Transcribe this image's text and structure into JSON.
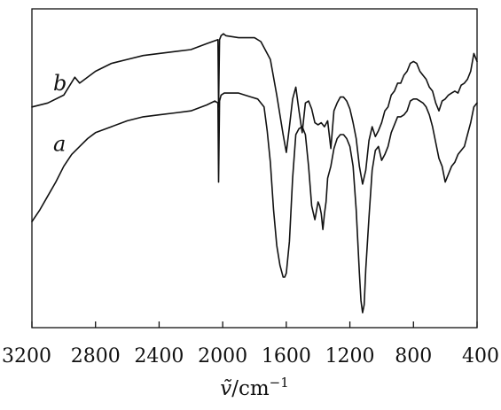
{
  "chart_data": {
    "type": "line",
    "title": "",
    "xlabel_var": "ṽ",
    "xlabel_unit": "/cm",
    "xlabel_exp": "−1",
    "x_reversed": true,
    "xlim": [
      3200,
      400
    ],
    "x_ticks": [
      3200,
      2800,
      2400,
      2000,
      1600,
      1200,
      800,
      400
    ],
    "y_ticks_shown": false,
    "grid": false,
    "legend": "none",
    "series": [
      {
        "name": "b",
        "color": "#111111",
        "x": [
          3200,
          3100,
          3000,
          2930,
          2900,
          2800,
          2700,
          2600,
          2500,
          2400,
          2300,
          2200,
          2100,
          2030,
          2026,
          2020,
          2010,
          1995,
          1980,
          1900,
          1850,
          1800,
          1760,
          1700,
          1660,
          1620,
          1600,
          1580,
          1560,
          1540,
          1520,
          1500,
          1480,
          1460,
          1440,
          1420,
          1400,
          1380,
          1360,
          1340,
          1320,
          1300,
          1280,
          1260,
          1240,
          1220,
          1200,
          1180,
          1160,
          1140,
          1120,
          1100,
          1080,
          1060,
          1040,
          1020,
          1000,
          980,
          960,
          940,
          920,
          900,
          880,
          860,
          840,
          820,
          800,
          780,
          760,
          740,
          720,
          700,
          680,
          660,
          640,
          620,
          600,
          580,
          560,
          540,
          520,
          500,
          480,
          460,
          440,
          420,
          400
        ],
        "y": [
          0.2,
          0.3,
          0.5,
          0.95,
          0.8,
          1.1,
          1.3,
          1.4,
          1.5,
          1.55,
          1.6,
          1.65,
          1.8,
          1.9,
          0.2,
          1.9,
          2.0,
          2.05,
          2.0,
          1.95,
          1.95,
          1.95,
          1.85,
          1.4,
          0.5,
          -0.5,
          -0.95,
          -0.3,
          0.4,
          0.7,
          0.1,
          -0.45,
          0.3,
          0.35,
          0.15,
          -0.2,
          -0.25,
          -0.2,
          -0.3,
          -0.15,
          -0.85,
          0.1,
          0.3,
          0.45,
          0.45,
          0.35,
          0.15,
          -0.2,
          -0.6,
          -1.3,
          -1.75,
          -1.4,
          -0.65,
          -0.3,
          -0.55,
          -0.4,
          -0.2,
          0.1,
          0.2,
          0.5,
          0.6,
          0.8,
          0.8,
          1.0,
          1.1,
          1.3,
          1.35,
          1.3,
          1.1,
          1.0,
          0.9,
          0.7,
          0.6,
          0.3,
          0.1,
          0.35,
          0.4,
          0.5,
          0.55,
          0.6,
          0.55,
          0.75,
          0.8,
          0.9,
          1.1,
          1.55,
          1.35
        ]
      },
      {
        "name": "a",
        "color": "#111111",
        "x": [
          3200,
          3150,
          3100,
          3050,
          3000,
          2950,
          2900,
          2850,
          2800,
          2700,
          2600,
          2500,
          2400,
          2300,
          2200,
          2100,
          2050,
          2030,
          2026,
          2020,
          2010,
          1990,
          1950,
          1900,
          1860,
          1820,
          1780,
          1740,
          1720,
          1700,
          1680,
          1660,
          1640,
          1620,
          1610,
          1600,
          1580,
          1560,
          1540,
          1520,
          1500,
          1480,
          1460,
          1440,
          1420,
          1400,
          1390,
          1380,
          1370,
          1360,
          1350,
          1340,
          1320,
          1300,
          1280,
          1260,
          1240,
          1220,
          1200,
          1180,
          1160,
          1140,
          1130,
          1120,
          1110,
          1100,
          1080,
          1060,
          1040,
          1020,
          1000,
          980,
          960,
          940,
          920,
          900,
          880,
          860,
          840,
          820,
          800,
          780,
          760,
          740,
          720,
          700,
          680,
          660,
          640,
          620,
          600,
          580,
          560,
          540,
          520,
          500,
          480,
          460,
          440,
          420,
          400
        ],
        "y": [
          -2.7,
          -2.4,
          -2.05,
          -1.7,
          -1.3,
          -1.0,
          -0.8,
          -0.6,
          -0.45,
          -0.3,
          -0.15,
          -0.05,
          0.0,
          0.05,
          0.1,
          0.25,
          0.35,
          0.3,
          -1.7,
          0.35,
          0.5,
          0.55,
          0.55,
          0.55,
          0.5,
          0.45,
          0.4,
          0.2,
          -0.4,
          -1.2,
          -2.4,
          -3.3,
          -3.8,
          -4.1,
          -4.1,
          -4.0,
          -3.2,
          -1.6,
          -0.5,
          -0.35,
          -0.3,
          -0.5,
          -1.3,
          -2.3,
          -2.65,
          -2.2,
          -2.3,
          -2.5,
          -2.9,
          -2.5,
          -2.2,
          -1.6,
          -1.3,
          -0.85,
          -0.6,
          -0.5,
          -0.5,
          -0.6,
          -0.8,
          -1.3,
          -2.4,
          -4.0,
          -4.7,
          -5.0,
          -4.8,
          -3.9,
          -2.6,
          -1.4,
          -0.9,
          -0.8,
          -1.15,
          -1.0,
          -0.8,
          -0.45,
          -0.25,
          -0.05,
          -0.05,
          0.0,
          0.1,
          0.35,
          0.4,
          0.4,
          0.35,
          0.3,
          0.2,
          0.0,
          -0.3,
          -0.7,
          -1.1,
          -1.3,
          -1.7,
          -1.5,
          -1.3,
          -1.2,
          -1.0,
          -0.9,
          -0.8,
          -0.5,
          -0.2,
          0.2,
          0.3
        ]
      }
    ],
    "yrange": [
      -5.2,
      2.5
    ]
  }
}
